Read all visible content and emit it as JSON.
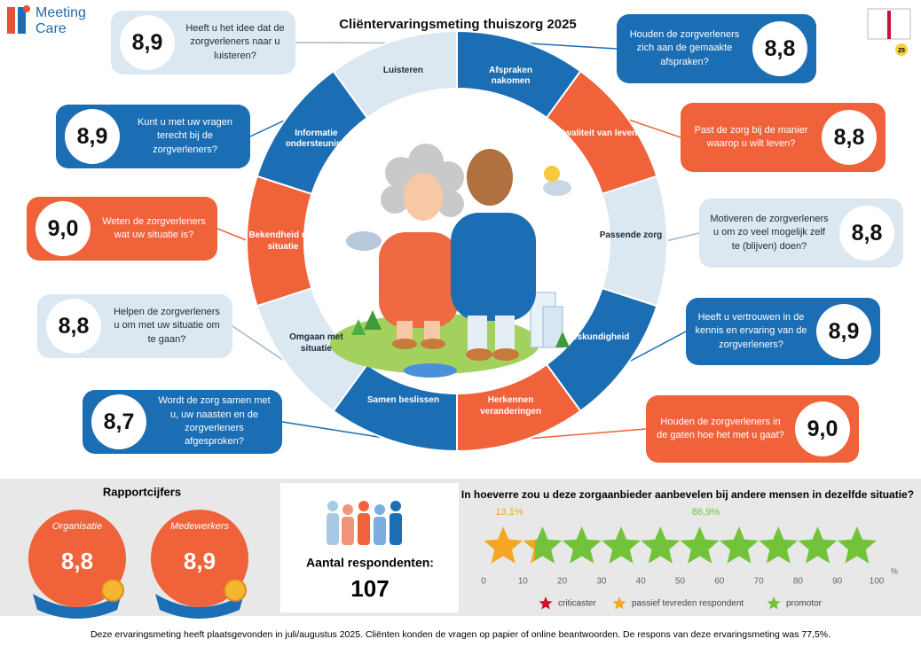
{
  "header": {
    "logo_lines": [
      "Meeting",
      "Care"
    ],
    "title": "Cliëntervaringsmeting thuiszorg 2025",
    "badge": "25"
  },
  "themes": [
    {
      "label": "Afspraken nakomen",
      "color": "#1b6db4",
      "score": "8,8",
      "question": "Houden de zorgverleners zich aan de gemaakte afspraken?"
    },
    {
      "label": "Kwaliteit van leven",
      "color": "#f0623a",
      "score": "8,8",
      "question": "Past de zorg bij de manier waarop u wilt leven?"
    },
    {
      "label": "Passende zorg",
      "color": "#dbe7f1",
      "score": "8,8",
      "question": "Motiveren de zorgverleners u om zo veel mogelijk zelf te (blijven) doen?"
    },
    {
      "label": "Deskundigheid",
      "color": "#1b6db4",
      "score": "8,9",
      "question": "Heeft u vertrouwen in de kennis en ervaring van de zorgverleners?"
    },
    {
      "label": "Herkennen veranderingen",
      "color": "#f0623a",
      "score": "9,0",
      "question": "Houden de zorgverleners in de gaten hoe het met u gaat?"
    },
    {
      "label": "Samen beslissen",
      "color": "#1b6db4",
      "score": "8,7",
      "question": "Wordt de zorg samen met u, uw naasten en de zorgverleners afgesproken?"
    },
    {
      "label": "Omgaan met situatie",
      "color": "#dbe7f1",
      "score": "8,8",
      "question": "Helpen de zorgverleners u om met uw situatie om te gaan?"
    },
    {
      "label": "Bekendheid met situatie",
      "color": "#f0623a",
      "score": "9,0",
      "question": "Weten de zorgverleners wat uw situatie is?"
    },
    {
      "label": "Informatie ondersteuning",
      "color": "#1b6db4",
      "score": "8,9",
      "question": "Kunt u met uw vragen terecht bij de zorgverleners?"
    },
    {
      "label": "Luisteren",
      "color": "#dbe7f1",
      "score": "8,9",
      "question": "Heeft u het idee dat de zorgverleners naar u luisteren?"
    }
  ],
  "report_grades": {
    "title": "Rapportcijfers",
    "items": [
      {
        "label": "Organisatie",
        "score": "8,8"
      },
      {
        "label": "Medewerkers",
        "score": "8,9"
      }
    ]
  },
  "respondents": {
    "label": "Aantal respondenten:",
    "count": 107
  },
  "chart_data": {
    "type": "star_rating",
    "title": "In hoeverre zou u deze zorgaanbieder aanbevelen bij andere mensen in dezelfde situatie?",
    "series": [
      {
        "name": "criticaster",
        "color": "#d0112b",
        "values": [
          0
        ]
      },
      {
        "name": "passief tevreden respondent",
        "color": "#f5a623",
        "values": [
          13.1
        ],
        "value_labels": [
          "13,1%"
        ]
      },
      {
        "name": "promotor",
        "color": "#72c33a",
        "values": [
          86.9
        ],
        "value_labels": [
          "86,9%"
        ]
      }
    ],
    "xlim": [
      0,
      100
    ],
    "xticks": [
      0,
      10,
      20,
      30,
      40,
      50,
      60,
      70,
      80,
      90,
      100
    ],
    "xlabel": "%"
  },
  "footer": "Deze ervaringsmeting heeft plaatsgevonden in juli/augustus 2025. Cliënten konden de vragen op papier of online beantwoorden. De respons van deze ervaringsmeting was 77,5%."
}
